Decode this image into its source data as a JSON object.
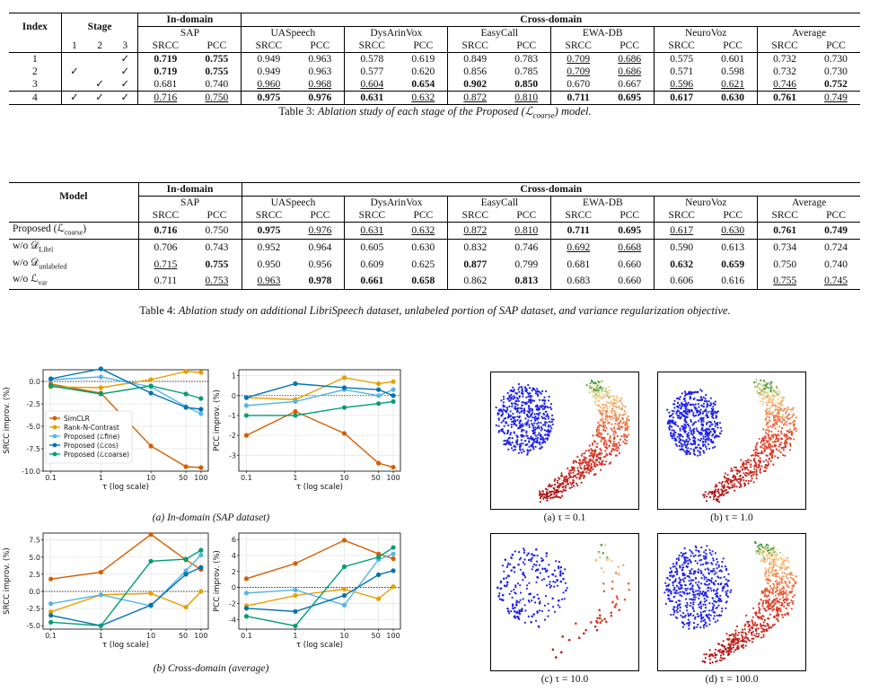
{
  "table3": {
    "caption_prefix": "Table 3:",
    "caption_text": "Ablation study of each stage of the Proposed (",
    "caption_sym": "ℒ",
    "caption_sub": "coarse",
    "caption_end": ") model.",
    "headers": {
      "index": "Index",
      "stage": "Stage",
      "in_domain": "In-domain",
      "cross_domain": "Cross-domain",
      "datasets": [
        "SAP",
        "UASpeech",
        "DysArinVox",
        "EasyCall",
        "EWA-DB",
        "NeuroVoz",
        "Average"
      ],
      "stage_cols": [
        "1",
        "2",
        "3"
      ],
      "metric_a": "SRCC",
      "metric_b": "PCC"
    },
    "rows": [
      {
        "index": "1",
        "stages": [
          "",
          "",
          "✓"
        ],
        "vals": [
          "0.719",
          "0.755",
          "0.949",
          "0.963",
          "0.578",
          "0.619",
          "0.849",
          "0.783",
          "0.709",
          "0.686",
          "0.575",
          "0.601",
          "0.732",
          "0.730"
        ],
        "fmt": [
          "b",
          "b",
          "",
          "",
          "",
          "",
          "",
          "",
          "u",
          "u",
          "",
          "",
          "",
          ""
        ]
      },
      {
        "index": "2",
        "stages": [
          "✓",
          "",
          "✓"
        ],
        "vals": [
          "0.719",
          "0.755",
          "0.949",
          "0.963",
          "0.577",
          "0.620",
          "0.856",
          "0.785",
          "0.709",
          "0.686",
          "0.571",
          "0.598",
          "0.732",
          "0.730"
        ],
        "fmt": [
          "b",
          "b",
          "",
          "",
          "",
          "",
          "",
          "",
          "u",
          "u",
          "",
          "",
          "",
          ""
        ]
      },
      {
        "index": "3",
        "stages": [
          "",
          "✓",
          "✓"
        ],
        "vals": [
          "0.681",
          "0.740",
          "0.960",
          "0.968",
          "0.604",
          "0.654",
          "0.902",
          "0.850",
          "0.670",
          "0.667",
          "0.596",
          "0.621",
          "0.746",
          "0.752"
        ],
        "fmt": [
          "",
          "",
          "u",
          "u",
          "u",
          "b",
          "b",
          "b",
          "",
          "",
          "u",
          "u",
          "u",
          "b"
        ]
      },
      {
        "index": "4",
        "stages": [
          "✓",
          "✓",
          "✓"
        ],
        "vals": [
          "0.716",
          "0.750",
          "0.975",
          "0.976",
          "0.631",
          "0.632",
          "0.872",
          "0.810",
          "0.711",
          "0.695",
          "0.617",
          "0.630",
          "0.761",
          "0.749"
        ],
        "fmt": [
          "u",
          "u",
          "b",
          "b",
          "b",
          "u",
          "u",
          "u",
          "b",
          "b",
          "b",
          "b",
          "b",
          "u"
        ]
      }
    ]
  },
  "table4": {
    "caption_prefix": "Table 4:",
    "caption_text": "Ablation study on additional LibriSpeech dataset, unlabeled portion of SAP dataset, and variance regularization objective.",
    "headers": {
      "model": "Model",
      "in_domain": "In-domain",
      "cross_domain": "Cross-domain"
    },
    "rows": [
      {
        "label_main": "Proposed (",
        "label_sym": "ℒ",
        "label_sub": "coarse",
        "label_end": ")",
        "vals": [
          "0.716",
          "0.750",
          "0.975",
          "0.976",
          "0.631",
          "0.632",
          "0.872",
          "0.810",
          "0.711",
          "0.695",
          "0.617",
          "0.630",
          "0.761",
          "0.749"
        ],
        "fmt": [
          "b",
          "",
          "b",
          "u",
          "u",
          "u",
          "u",
          "u",
          "b",
          "b",
          "u",
          "u",
          "b",
          "b"
        ]
      },
      {
        "label_main": "w/o ",
        "label_sym": "𝒟",
        "label_sub": "Libri",
        "label_end": "",
        "vals": [
          "0.706",
          "0.743",
          "0.952",
          "0.964",
          "0.605",
          "0.630",
          "0.832",
          "0.746",
          "0.692",
          "0.668",
          "0.590",
          "0.613",
          "0.734",
          "0.724"
        ],
        "fmt": [
          "",
          "",
          "",
          "",
          "",
          "",
          "",
          "",
          "u",
          "u",
          "",
          "",
          "",
          ""
        ]
      },
      {
        "label_main": "w/o ",
        "label_sym": "𝒟",
        "label_sub": "unlabeled",
        "label_end": "",
        "vals": [
          "0.715",
          "0.755",
          "0.950",
          "0.956",
          "0.609",
          "0.625",
          "0.877",
          "0.799",
          "0.681",
          "0.660",
          "0.632",
          "0.659",
          "0.750",
          "0.740"
        ],
        "fmt": [
          "u",
          "b",
          "",
          "",
          "",
          "",
          "b",
          "",
          "",
          "",
          "b",
          "b",
          "",
          ""
        ]
      },
      {
        "label_main": "w/o ",
        "label_sym": "ℒ",
        "label_sub": "var",
        "label_end": "",
        "vals": [
          "0.711",
          "0.753",
          "0.963",
          "0.978",
          "0.661",
          "0.658",
          "0.862",
          "0.813",
          "0.683",
          "0.660",
          "0.606",
          "0.616",
          "0.755",
          "0.745"
        ],
        "fmt": [
          "",
          "u",
          "u",
          "b",
          "b",
          "b",
          "",
          "b",
          "",
          "",
          "",
          "",
          "u",
          "u"
        ]
      }
    ]
  },
  "figure_left": {
    "caption_a": "(a) In-domain (SAP dataset)",
    "caption_b": "(b) Cross-domain (average)",
    "xlabel": "τ (log scale)",
    "ylabel_srcc": "SRCC improv. (%)",
    "ylabel_pcc": "PCC improv. (%)",
    "legend": [
      "SimCLR",
      "Rank-N-Contrast",
      "Proposed (ℒfine)",
      "Proposed (ℒcos)",
      "Proposed (ℒcoarse)"
    ]
  },
  "chart_data": [
    {
      "type": "line",
      "panel": "a-left",
      "x": [
        0.1,
        1,
        10,
        50,
        100
      ],
      "xlabel": "τ (log scale)",
      "ylabel": "SRCC improv. (%)",
      "xscale": "log",
      "ylim": [
        -10,
        1.3
      ],
      "yticks": [
        0.0,
        -2.5,
        -5.0,
        -7.5,
        -10.0
      ],
      "xticks": [
        "0.1",
        "1",
        "10",
        "50",
        "100"
      ],
      "series": [
        {
          "name": "SimCLR",
          "color": "#d55e00",
          "values": [
            -0.3,
            -1.3,
            -7.2,
            -9.5,
            -9.6
          ]
        },
        {
          "name": "Rank-N-Contrast",
          "color": "#e69f00",
          "values": [
            -0.6,
            -0.7,
            0.2,
            1.1,
            1.0
          ]
        },
        {
          "name": "Proposed (ℒfine)",
          "color": "#56b4e9",
          "values": [
            0.2,
            0.5,
            -0.6,
            -2.8,
            -3.6
          ]
        },
        {
          "name": "Proposed (ℒcos)",
          "color": "#0072b2",
          "values": [
            0.3,
            1.4,
            -1.3,
            -2.9,
            -3.1
          ]
        },
        {
          "name": "Proposed (ℒcoarse)",
          "color": "#009e73",
          "values": [
            -0.5,
            -1.4,
            -0.5,
            -1.4,
            -1.9
          ]
        }
      ]
    },
    {
      "type": "line",
      "panel": "a-right",
      "x": [
        0.1,
        1,
        10,
        50,
        100
      ],
      "xlabel": "τ (log scale)",
      "ylabel": "PCC improv. (%)",
      "xscale": "log",
      "ylim": [
        -3.8,
        1.3
      ],
      "yticks": [
        1,
        0,
        -1,
        -2,
        -3
      ],
      "xticks": [
        "0.1",
        "1",
        "10",
        "50",
        "100"
      ],
      "series": [
        {
          "name": "SimCLR",
          "color": "#d55e00",
          "values": [
            -2.0,
            -0.8,
            -1.9,
            -3.4,
            -3.6
          ]
        },
        {
          "name": "Rank-N-Contrast",
          "color": "#e69f00",
          "values": [
            -0.1,
            -0.2,
            0.9,
            0.6,
            0.7
          ]
        },
        {
          "name": "Proposed (ℒfine)",
          "color": "#56b4e9",
          "values": [
            -0.5,
            -0.3,
            0.3,
            0.0,
            0.3
          ]
        },
        {
          "name": "Proposed (ℒcos)",
          "color": "#0072b2",
          "values": [
            -0.1,
            0.6,
            0.4,
            0.3,
            0.0
          ]
        },
        {
          "name": "Proposed (ℒcoarse)",
          "color": "#009e73",
          "values": [
            -1.0,
            -1.0,
            -0.6,
            -0.4,
            -0.3
          ]
        }
      ]
    },
    {
      "type": "line",
      "panel": "b-left",
      "x": [
        0.1,
        1,
        10,
        50,
        100
      ],
      "xlabel": "τ (log scale)",
      "ylabel": "SRCC improv. (%)",
      "xscale": "log",
      "ylim": [
        -5.5,
        8.5
      ],
      "yticks": [
        7.5,
        5.0,
        2.5,
        0.0,
        -2.5,
        -5.0
      ],
      "xticks": [
        "0.1",
        "1",
        "10",
        "50",
        "100"
      ],
      "series": [
        {
          "name": "SimCLR",
          "color": "#d55e00",
          "values": [
            1.8,
            2.8,
            8.3,
            4.6,
            3.2
          ]
        },
        {
          "name": "Rank-N-Contrast",
          "color": "#e69f00",
          "values": [
            -3.0,
            -0.5,
            -0.3,
            -2.3,
            0.0
          ]
        },
        {
          "name": "Proposed (ℒfine)",
          "color": "#56b4e9",
          "values": [
            -1.8,
            -0.5,
            -2.1,
            3.0,
            5.3
          ]
        },
        {
          "name": "Proposed (ℒcos)",
          "color": "#0072b2",
          "values": [
            -3.5,
            -5.0,
            -2.0,
            2.5,
            3.5
          ]
        },
        {
          "name": "Proposed (ℒcoarse)",
          "color": "#009e73",
          "values": [
            -4.5,
            -5.0,
            4.4,
            4.7,
            6.0
          ]
        }
      ]
    },
    {
      "type": "line",
      "panel": "b-right",
      "x": [
        0.1,
        1,
        10,
        50,
        100
      ],
      "xlabel": "τ (log scale)",
      "ylabel": "PCC improv. (%)",
      "xscale": "log",
      "ylim": [
        -5.2,
        6.8
      ],
      "yticks": [
        6,
        4,
        2,
        0,
        -2,
        -4
      ],
      "xticks": [
        "0.1",
        "1",
        "10",
        "50",
        "100"
      ],
      "series": [
        {
          "name": "SimCLR",
          "color": "#d55e00",
          "values": [
            1.1,
            3.0,
            5.9,
            4.2,
            3.6
          ]
        },
        {
          "name": "Rank-N-Contrast",
          "color": "#e69f00",
          "values": [
            -2.3,
            -1.0,
            -0.2,
            -1.4,
            0.1
          ]
        },
        {
          "name": "Proposed (ℒfine)",
          "color": "#56b4e9",
          "values": [
            -0.7,
            -0.3,
            -2.2,
            3.5,
            4.2
          ]
        },
        {
          "name": "Proposed (ℒcos)",
          "color": "#0072b2",
          "values": [
            -2.6,
            -3.0,
            -1.0,
            1.6,
            2.1
          ]
        },
        {
          "name": "Proposed (ℒcoarse)",
          "color": "#009e73",
          "values": [
            -3.6,
            -4.8,
            2.6,
            3.8,
            5.0
          ]
        }
      ]
    }
  ],
  "figure_right": {
    "captions": [
      "(a) τ = 0.1",
      "(b) τ = 1.0",
      "(c) τ = 10.0",
      "(d) τ = 100.0"
    ]
  }
}
